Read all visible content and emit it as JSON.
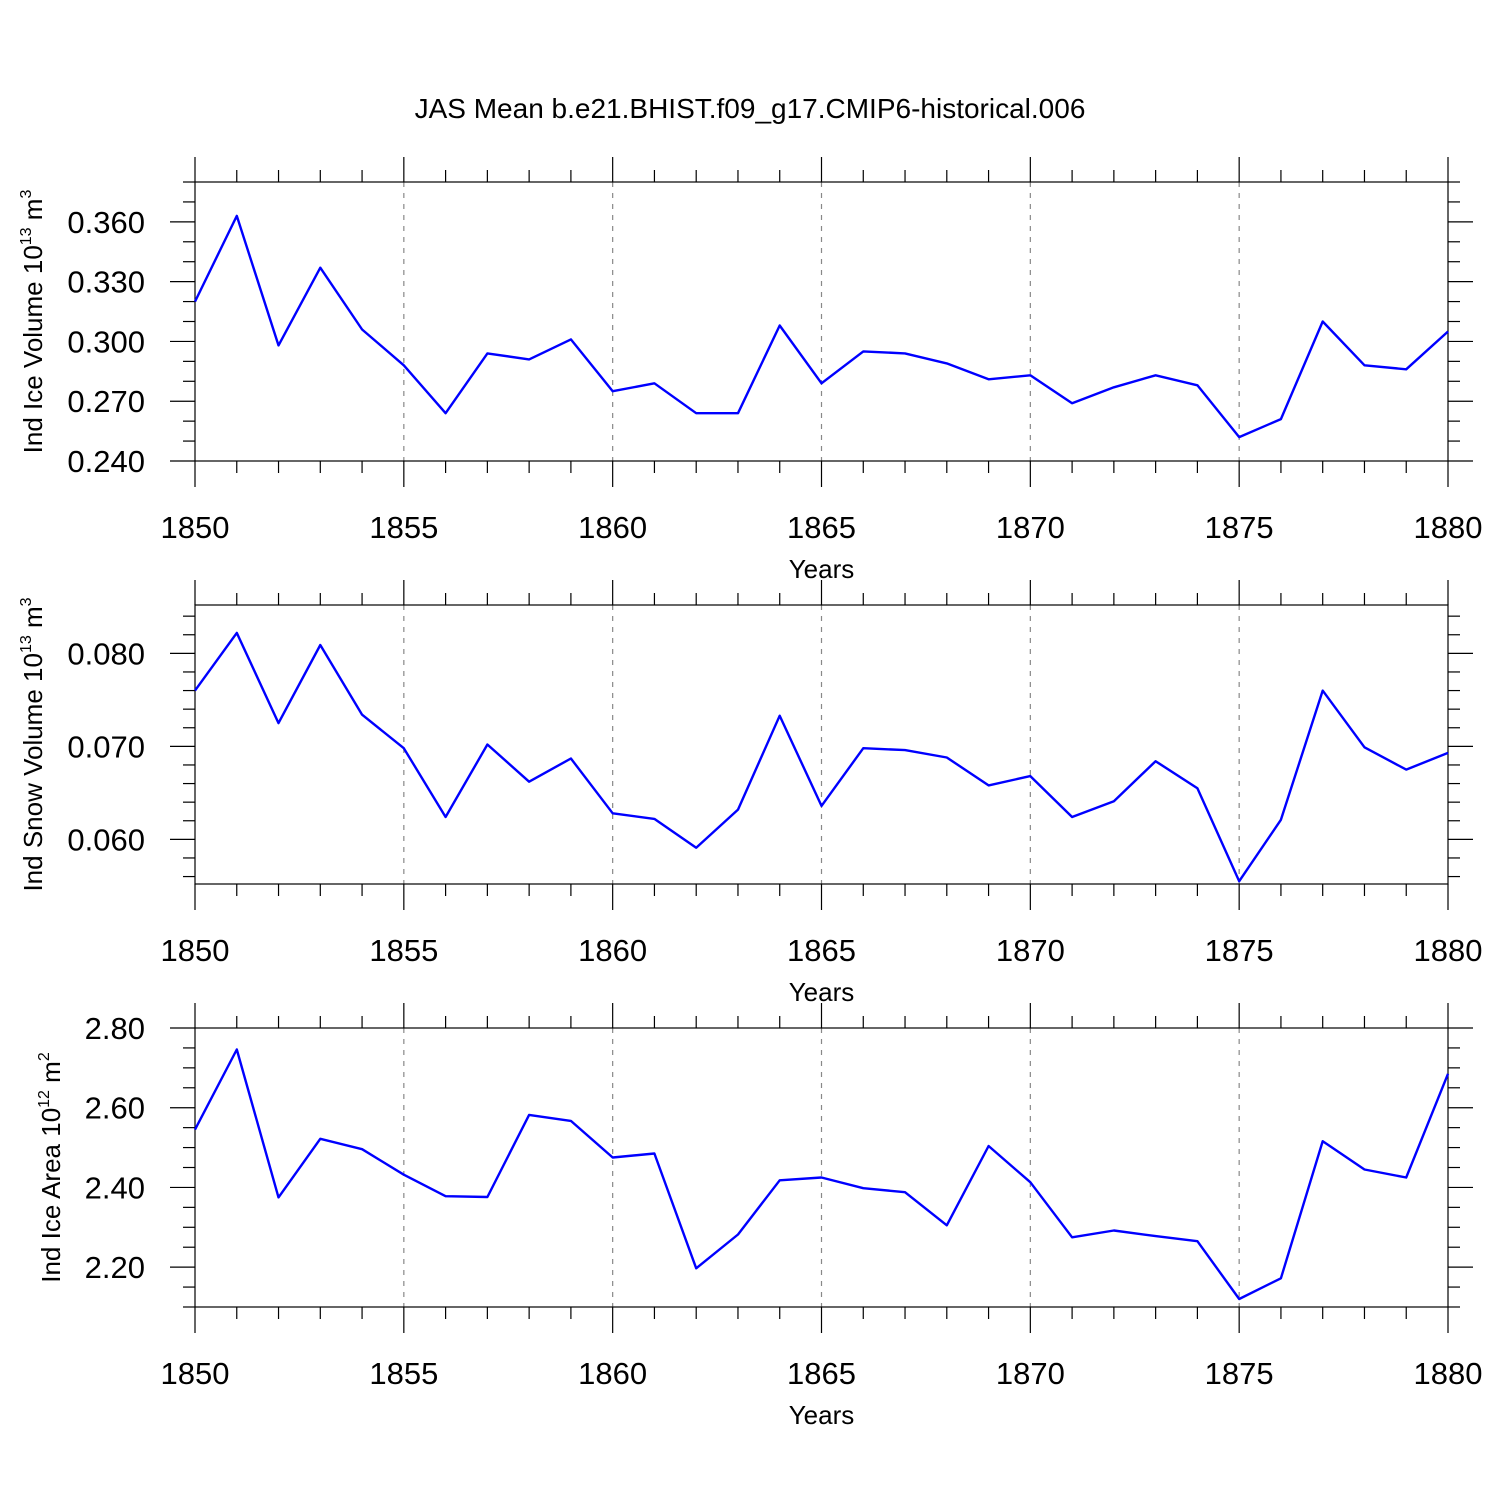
{
  "chart_data": {
    "title": "JAS Mean b.e21.BHIST.f09_g17.CMIP6-historical.006",
    "panels": [
      {
        "type": "line",
        "xlabel": "Years",
        "ylabel": {
          "text": "Ind Ice Volume 10",
          "sup": "13",
          "unit": " m",
          "unit_sup": "3"
        },
        "xlim": [
          1850,
          1880
        ],
        "ylim": [
          0.24,
          0.38
        ],
        "xticks": [
          1850,
          1855,
          1860,
          1865,
          1870,
          1875,
          1880
        ],
        "xtick_labels": [
          "1850",
          "1855",
          "1860",
          "1865",
          "1870",
          "1875",
          "1880"
        ],
        "yticks": [
          0.24,
          0.27,
          0.3,
          0.33,
          0.36
        ],
        "ytick_labels": [
          "0.240",
          "0.270",
          "0.300",
          "0.330",
          "0.360"
        ],
        "y_minor_step": 0.01,
        "grid": "x-major-dashed",
        "color": "#0000ff",
        "series": [
          {
            "name": "Ind Ice Volume",
            "x": [
              1850,
              1851,
              1852,
              1853,
              1854,
              1855,
              1856,
              1857,
              1858,
              1859,
              1860,
              1861,
              1862,
              1863,
              1864,
              1865,
              1866,
              1867,
              1868,
              1869,
              1870,
              1871,
              1872,
              1873,
              1874,
              1875,
              1876,
              1877,
              1878,
              1879,
              1880
            ],
            "values": [
              0.32,
              0.363,
              0.298,
              0.337,
              0.306,
              0.288,
              0.264,
              0.294,
              0.291,
              0.301,
              0.275,
              0.279,
              0.264,
              0.264,
              0.308,
              0.279,
              0.295,
              0.294,
              0.289,
              0.281,
              0.283,
              0.269,
              0.277,
              0.283,
              0.278,
              0.252,
              0.261,
              0.31,
              0.288,
              0.286,
              0.305
            ]
          }
        ]
      },
      {
        "type": "line",
        "xlabel": "Years",
        "ylabel": {
          "text": "Ind Snow Volume 10",
          "sup": "13",
          "unit": " m",
          "unit_sup": "3"
        },
        "xlim": [
          1850,
          1880
        ],
        "ylim": [
          0.0552,
          0.0852
        ],
        "xticks": [
          1850,
          1855,
          1860,
          1865,
          1870,
          1875,
          1880
        ],
        "xtick_labels": [
          "1850",
          "1855",
          "1860",
          "1865",
          "1870",
          "1875",
          "1880"
        ],
        "yticks": [
          0.06,
          0.07,
          0.08
        ],
        "ytick_labels": [
          "0.060",
          "0.070",
          "0.080"
        ],
        "y_minor_step": 0.002,
        "grid": "x-major-dashed",
        "color": "#0000ff",
        "series": [
          {
            "name": "Ind Snow Volume",
            "x": [
              1850,
              1851,
              1852,
              1853,
              1854,
              1855,
              1856,
              1857,
              1858,
              1859,
              1860,
              1861,
              1862,
              1863,
              1864,
              1865,
              1866,
              1867,
              1868,
              1869,
              1870,
              1871,
              1872,
              1873,
              1874,
              1875,
              1876,
              1877,
              1878,
              1879,
              1880
            ],
            "values": [
              0.076,
              0.0822,
              0.0725,
              0.0809,
              0.0734,
              0.0698,
              0.0624,
              0.0702,
              0.0662,
              0.0687,
              0.0628,
              0.0622,
              0.0591,
              0.0632,
              0.0733,
              0.0636,
              0.0698,
              0.0696,
              0.0688,
              0.0658,
              0.0668,
              0.0624,
              0.0641,
              0.0684,
              0.0655,
              0.0555,
              0.0621,
              0.076,
              0.0699,
              0.0675,
              0.0693
            ]
          }
        ]
      },
      {
        "type": "line",
        "xlabel": "Years",
        "ylabel": {
          "text": "Ind Ice Area 10",
          "sup": "12",
          "unit": " m",
          "unit_sup": "2"
        },
        "xlim": [
          1850,
          1880
        ],
        "ylim": [
          2.1,
          2.8
        ],
        "xticks": [
          1850,
          1855,
          1860,
          1865,
          1870,
          1875,
          1880
        ],
        "xtick_labels": [
          "1850",
          "1855",
          "1860",
          "1865",
          "1870",
          "1875",
          "1880"
        ],
        "yticks": [
          2.2,
          2.4,
          2.6,
          2.8
        ],
        "ytick_labels": [
          "2.20",
          "2.40",
          "2.60",
          "2.80"
        ],
        "y_minor_step": 0.05,
        "grid": "x-major-dashed",
        "color": "#0000ff",
        "series": [
          {
            "name": "Ind Ice Area",
            "x": [
              1850,
              1851,
              1852,
              1853,
              1854,
              1855,
              1856,
              1857,
              1858,
              1859,
              1860,
              1861,
              1862,
              1863,
              1864,
              1865,
              1866,
              1867,
              1868,
              1869,
              1870,
              1871,
              1872,
              1873,
              1874,
              1875,
              1876,
              1877,
              1878,
              1879,
              1880
            ],
            "values": [
              2.545,
              2.746,
              2.375,
              2.522,
              2.496,
              2.432,
              2.378,
              2.376,
              2.582,
              2.567,
              2.475,
              2.485,
              2.197,
              2.282,
              2.418,
              2.425,
              2.398,
              2.388,
              2.305,
              2.504,
              2.413,
              2.275,
              2.292,
              2.278,
              2.265,
              2.12,
              2.172,
              2.516,
              2.445,
              2.425,
              2.685
            ]
          }
        ]
      }
    ]
  }
}
